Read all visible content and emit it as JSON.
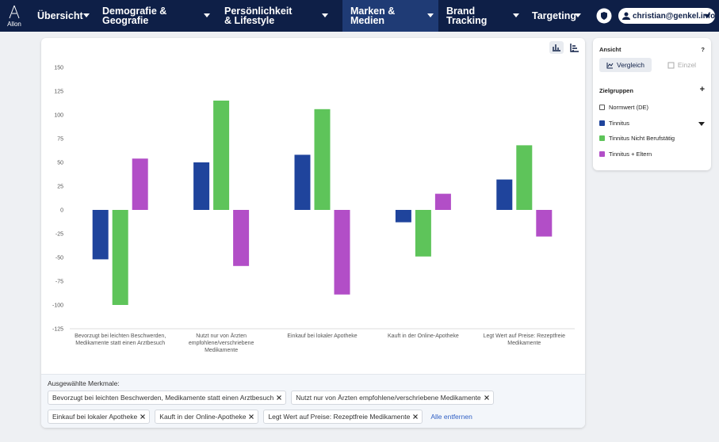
{
  "nav": {
    "logo": "Allon",
    "items": [
      "Übersicht",
      "Demografie & Geografie",
      "Persönlichkeit & Lifestyle",
      "Marken & Medien",
      "Brand Tracking",
      "Targeting"
    ],
    "user": "christian@genkel.info"
  },
  "chart_data": {
    "type": "bar",
    "categories": [
      "Bevorzugt bei leichten Beschwerden, Medikamente statt einen Arztbesuch",
      "Nutzt nur von Ärzten empfohlene/verschriebene Medikamente",
      "Einkauf bei lokaler Apotheke",
      "Kauft in der Online-Apotheke",
      "Legt Wert auf Preise: Rezeptfreie Medikamente"
    ],
    "series": [
      {
        "name": "Tinnitus",
        "color": "#1f449c",
        "values": [
          -52,
          50,
          58,
          -13,
          32
        ]
      },
      {
        "name": "Tinnitus Nicht Berufstätig",
        "color": "#5ec45a",
        "values": [
          -100,
          115,
          106,
          -49,
          68
        ]
      },
      {
        "name": "Tinnitus + Eltern",
        "color": "#b24ec7",
        "values": [
          54,
          -59,
          -89,
          17,
          -28
        ]
      }
    ],
    "ylim": [
      -125,
      150
    ],
    "yticks": [
      -125,
      -100,
      -75,
      -50,
      -25,
      0,
      25,
      50,
      75,
      100,
      125,
      150
    ],
    "grid": false
  },
  "sidebar": {
    "view_title": "Ansicht",
    "help": "?",
    "view_options": [
      "Vergleich",
      "Einzel"
    ],
    "groups_title": "Zielgruppen",
    "add": "+",
    "norm_group": "Normwert (DE)"
  },
  "selection": {
    "title": "Ausgewählte Merkmale:",
    "chips": [
      "Bevorzugt bei leichten Beschwerden, Medikamente statt einen Arztbesuch",
      "Nutzt nur von Ärzten empfohlene/verschriebene Medikamente",
      "Einkauf bei lokaler Apotheke",
      "Kauft in der Online-Apotheke",
      "Legt Wert auf Preise: Rezeptfreie Medikamente"
    ],
    "clear": "Alle entfernen"
  }
}
